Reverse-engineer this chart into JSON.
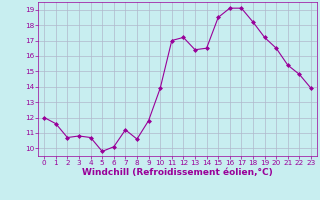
{
  "x": [
    0,
    1,
    2,
    3,
    4,
    5,
    6,
    7,
    8,
    9,
    10,
    11,
    12,
    13,
    14,
    15,
    16,
    17,
    18,
    19,
    20,
    21,
    22,
    23
  ],
  "y": [
    12.0,
    11.6,
    10.7,
    10.8,
    10.7,
    9.8,
    10.1,
    11.2,
    10.6,
    11.8,
    13.9,
    17.0,
    17.2,
    16.4,
    16.5,
    18.5,
    19.1,
    19.1,
    18.2,
    17.2,
    16.5,
    15.4,
    14.8,
    13.9
  ],
  "line_color": "#990099",
  "marker": "D",
  "marker_size": 2.0,
  "background_color": "#c8eef0",
  "grid_color": "#b0b8cc",
  "xlabel": "Windchill (Refroidissement éolien,°C)",
  "xlabel_color": "#990099",
  "ylim": [
    9.5,
    19.5
  ],
  "xlim": [
    -0.5,
    23.5
  ],
  "yticks": [
    10,
    11,
    12,
    13,
    14,
    15,
    16,
    17,
    18,
    19
  ],
  "xticks": [
    0,
    1,
    2,
    3,
    4,
    5,
    6,
    7,
    8,
    9,
    10,
    11,
    12,
    13,
    14,
    15,
    16,
    17,
    18,
    19,
    20,
    21,
    22,
    23
  ],
  "tick_color": "#990099",
  "tick_fontsize": 5.2,
  "xlabel_fontsize": 6.5,
  "linewidth": 0.8
}
